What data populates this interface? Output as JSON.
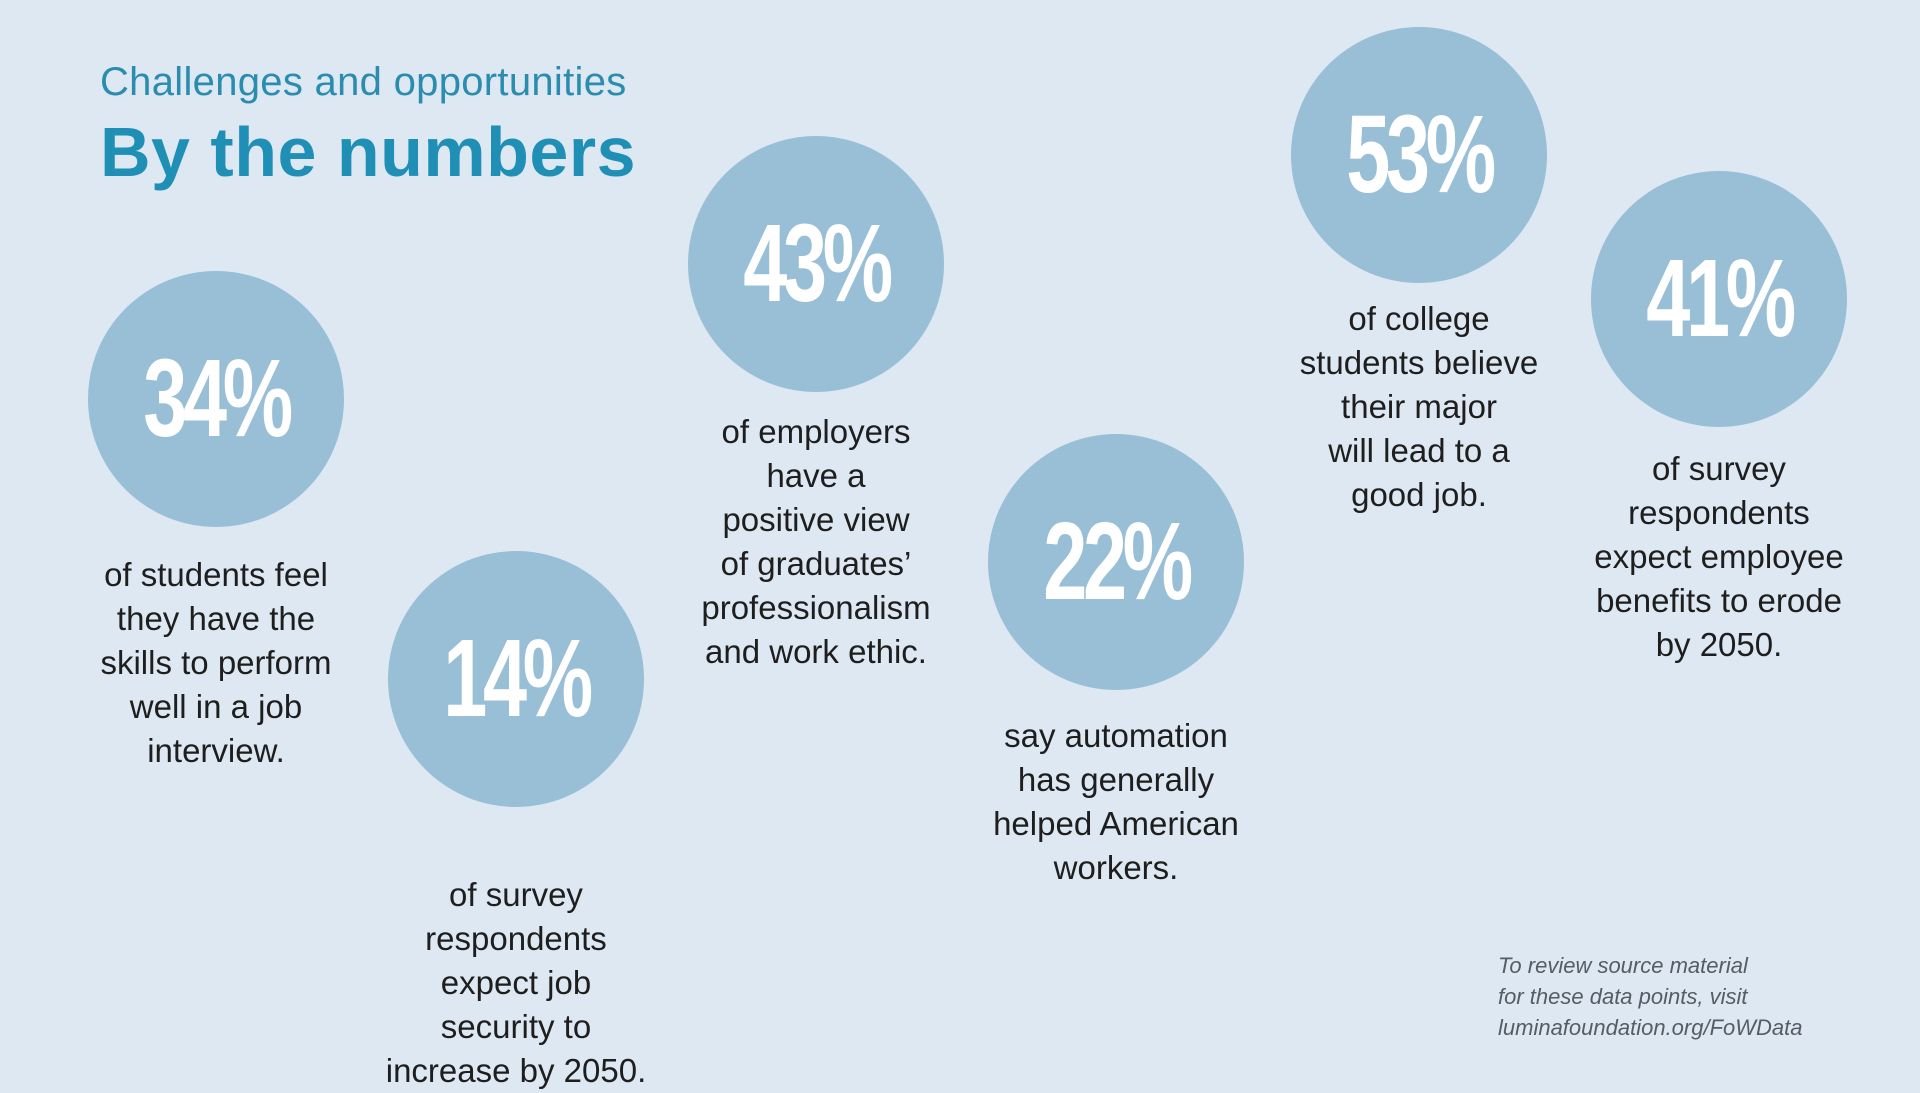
{
  "header": {
    "kicker": "Challenges and opportunities",
    "title": "By the numbers"
  },
  "colors": {
    "background": "#dde8f2",
    "circle": "#98bfd6",
    "heading": "#1f8fb6",
    "percent_text": "#ffffff",
    "body_text": "#1e1e1e"
  },
  "stats": [
    {
      "value": "34%",
      "caption_lines": [
        "of students feel",
        "they have the",
        "skills to perform",
        "well in a job",
        "interview."
      ]
    },
    {
      "value": "14%",
      "caption_lines": [
        "of survey",
        "respondents",
        "expect job",
        "security to",
        "increase by 2050."
      ]
    },
    {
      "value": "43%",
      "caption_lines": [
        "of employers",
        "have a",
        "positive view",
        "of graduates’",
        "professionalism",
        "and work ethic."
      ]
    },
    {
      "value": "22%",
      "caption_lines": [
        "say automation",
        "has generally",
        "helped American",
        "workers."
      ]
    },
    {
      "value": "53%",
      "caption_lines": [
        "of college",
        "students believe",
        "their major",
        "will lead to a",
        "good job."
      ]
    },
    {
      "value": "41%",
      "caption_lines": [
        "of survey",
        "respondents",
        "expect employee",
        "benefits to erode",
        "by 2050."
      ]
    }
  ],
  "source_note": {
    "lines": [
      "To review source material",
      "for these data points, visit",
      "luminafoundation.org/FoWData"
    ]
  }
}
